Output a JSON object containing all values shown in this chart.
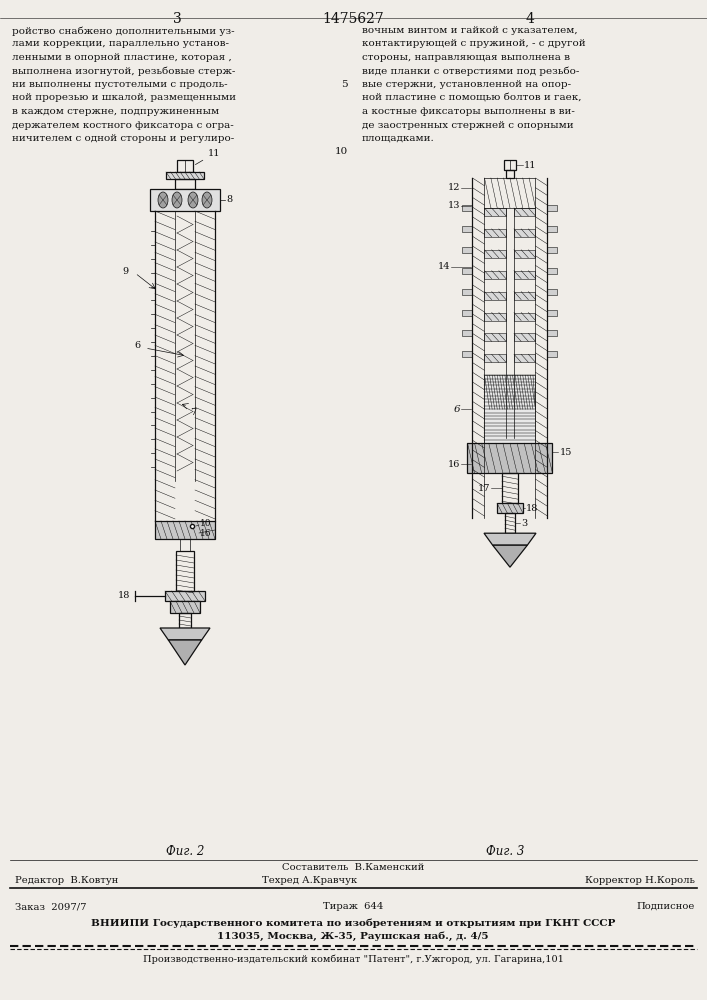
{
  "page_number_left": "3",
  "page_number_center": "1475627",
  "page_number_right": "4",
  "text_left": "ройство снабжено дополнительными уз-\nлами коррекции, параллельно установ-\nленными в опорной пластине, которая ,\nвыполнена изогнутой, резьбовые стерж-\nни выполнены пустотелыми с продоль-\nной прорезью и шкалой, размещенными\nв каждом стержне, подпружиненным\nдержателем костного фиксатора с огра-\nничителем с одной стороны и регулиро-",
  "text_right": "вочным винтом и гайкой с указателем,\nконтактирующей с пружиной, - с другой\nстороны, направляющая выполнена в\nвиде планки с отверстиями под резьбо-\nвые стержни, установленной на опор-\nной пластине с помощью болтов и гаек,\nа костные фиксаторы выполнены в ви-\nде заостренных стержней с опорными\nплощадками.",
  "text_right_line5_num": "5",
  "text_right_line10_num": "10",
  "fig2_label": "Фиг. 2",
  "fig3_label": "Фиг. 3",
  "footer_editor": "Редактор  В.Ковтун",
  "footer_composer_title": "Составитель  В.Каменский",
  "footer_techred": "Техред А.Кравчук",
  "footer_corrector": "Корректор Н.Король",
  "footer_order": "Заказ  2097/7",
  "footer_tirazh": "Тираж  644",
  "footer_podpisnoe": "Подписное",
  "footer_vniiipi": "ВНИИПИ Государственного комитета по изобретениям и открытиям при ГКНТ СССР",
  "footer_address": "113035, Москва, Ж-35, Раушская наб., д. 4/5",
  "footer_publisher": "Производственно-издательский комбинат \"Патент\", г.Ужгород, ул. Гагарина,101",
  "bg_color": "#f0ede8",
  "text_color": "#111111",
  "line_color": "#111111"
}
